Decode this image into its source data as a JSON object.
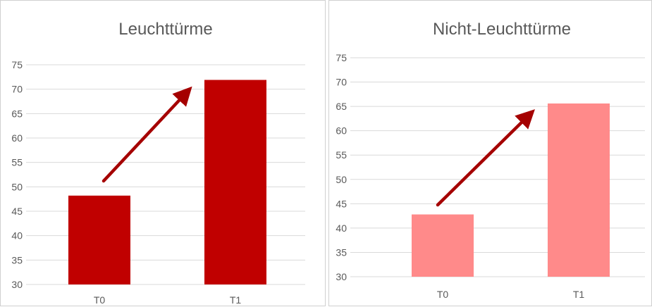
{
  "chart_data": [
    {
      "type": "bar",
      "title": "Leuchttürme",
      "categories": [
        "T0",
        "T1"
      ],
      "values": [
        48.2,
        71.9
      ],
      "ylim": [
        30,
        75
      ],
      "yticks": [
        30,
        35,
        40,
        45,
        50,
        55,
        60,
        65,
        70,
        75
      ],
      "grid": true,
      "bar_color": "#c00000",
      "arrow_color": "#a50000",
      "xlabel": "",
      "ylabel": ""
    },
    {
      "type": "bar",
      "title": "Nicht-Leuchttürme",
      "categories": [
        "T0",
        "T1"
      ],
      "values": [
        42.8,
        65.6
      ],
      "ylim": [
        30,
        75
      ],
      "yticks": [
        30,
        35,
        40,
        45,
        50,
        55,
        60,
        65,
        70,
        75
      ],
      "grid": true,
      "bar_color": "#ff8a8a",
      "arrow_color": "#a50000",
      "xlabel": "",
      "ylabel": ""
    }
  ]
}
